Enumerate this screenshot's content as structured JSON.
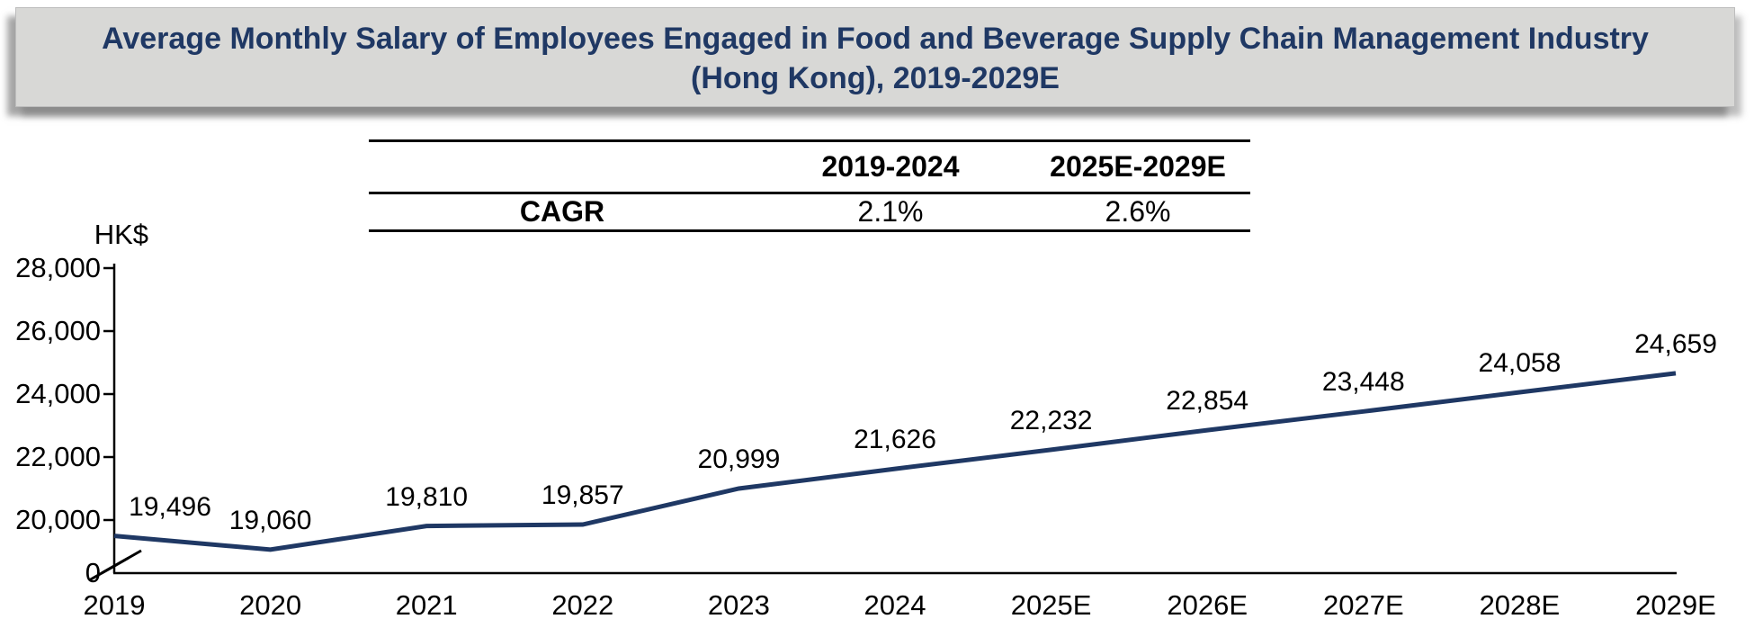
{
  "title": "Average Monthly Salary of Employees Engaged in Food and Beverage Supply Chain Management Industry (Hong Kong), 2019-2029E",
  "cagr_table": {
    "row_label": "CAGR",
    "col_headers": [
      "2019-2024",
      "2025E-2029E"
    ],
    "values": [
      "2.1%",
      "2.6%"
    ]
  },
  "chart_data": {
    "type": "line",
    "title": "Average Monthly Salary of Employees Engaged in Food and Beverage Supply Chain Management Industry (Hong Kong), 2019-2029E",
    "xlabel": "",
    "ylabel": "HK$",
    "categories": [
      "2019",
      "2020",
      "2021",
      "2022",
      "2023",
      "2024",
      "2025E",
      "2026E",
      "2027E",
      "2028E",
      "2029E"
    ],
    "values": [
      19496,
      19060,
      19810,
      19857,
      20999,
      21626,
      22232,
      22854,
      23448,
      24058,
      24659
    ],
    "labels": [
      "19,496",
      "19,060",
      "19,810",
      "19,857",
      "20,999",
      "21,626",
      "22,232",
      "22,854",
      "23,448",
      "24,058",
      "24,659"
    ],
    "yticks": [
      "28,000",
      "26,000",
      "24,000",
      "22,000",
      "20,000"
    ],
    "ytick_values": [
      28000,
      26000,
      24000,
      22000,
      20000
    ],
    "origin_label": "0",
    "axis_break": true,
    "axis_break_between": [
      0,
      20000
    ],
    "ylim": [
      0,
      28000
    ],
    "grid": false,
    "legend": "none",
    "line_color": "#1F3864",
    "annotations": {
      "cagr_2019_2024": "2.1%",
      "cagr_2025e_2029e": "2.6%"
    }
  },
  "colors": {
    "title_navy": "#1F3864",
    "line_navy": "#1F3864",
    "banner_bg": "#D8D8D6",
    "axis_black": "#000000"
  }
}
